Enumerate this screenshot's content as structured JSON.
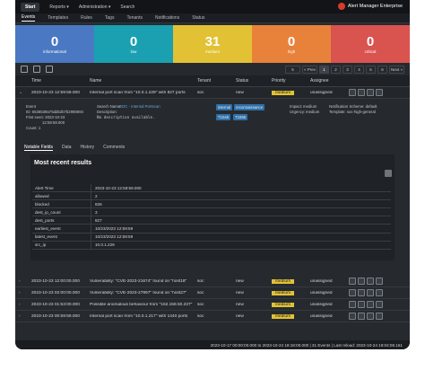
{
  "topbar": {
    "nav": [
      "Start",
      "Reports ▾",
      "Administration ▾",
      "Search"
    ],
    "brand": "Alert Manager Enterprise"
  },
  "subnav": [
    "Events",
    "Templates",
    "Rules",
    "Tags",
    "Tenants",
    "Notifications",
    "Status"
  ],
  "tiles": [
    {
      "count": "0",
      "label": "informational",
      "color": "#4a78c2"
    },
    {
      "count": "0",
      "label": "low",
      "color": "#1aa0b0"
    },
    {
      "count": "31",
      "label": "medium",
      "color": "#e2c234"
    },
    {
      "count": "0",
      "label": "high",
      "color": "#e8823a"
    },
    {
      "count": "0",
      "label": "critical",
      "color": "#d9534f"
    }
  ],
  "pager": {
    "per_page": "5",
    "prev": "« Prev",
    "pages": [
      "1",
      "2",
      "3",
      "4",
      "5",
      "6"
    ],
    "current": "1",
    "next": "Next »"
  },
  "table": {
    "headers": {
      "time": "Time",
      "name": "Name",
      "tenant": "Tenant",
      "status": "Status",
      "priority": "Priority",
      "assignee": "Assignee"
    }
  },
  "expanded_row": {
    "time": "2023-10-23 12:59:59.000",
    "name": "Internal port scan from \"10.0.1.229\" with 827 ports",
    "tenant": "soc",
    "status": "new",
    "priority": "medium",
    "assignee": "unassigned"
  },
  "details": {
    "search_name_label": "Search Name:",
    "search_name_value": "SOC - Internal Portscan",
    "description_label": "Description:",
    "description_value": "No description available.",
    "event_id_label": "Event",
    "event_id": "ID: 6536539a75dd52b7b2980694",
    "first_seen": "First seen: 2023-10-23",
    "first_seen_time": "12:59:59.000",
    "count": "Count: 1",
    "tags": [
      "internal",
      "reconnaissance",
      "T1046",
      "T1595"
    ],
    "impact": "Impact:",
    "impact_value": "medium",
    "urgency": "Urgency:",
    "urgency_value": "medium",
    "notif_scheme": "Notification Scheme: default",
    "template": "Template: soc-high-general"
  },
  "detail_tabs": [
    "Notable Fields",
    "Data",
    "History",
    "Comments"
  ],
  "panel": {
    "title": "Most recent results",
    "fields": [
      {
        "k": "Alert Time",
        "v": "2023-10-23 12:59:59.000"
      },
      {
        "k": "allowed",
        "v": "2"
      },
      {
        "k": "blocked",
        "v": "826"
      },
      {
        "k": "dest_ip_count",
        "v": "3"
      },
      {
        "k": "dest_ports",
        "v": "827"
      },
      {
        "k": "earliest_event",
        "v": "10/23/2023 12:59:59"
      },
      {
        "k": "latest_event",
        "v": "10/23/2023 12:59:59"
      },
      {
        "k": "src_ip",
        "v": "10.0.1.229"
      }
    ]
  },
  "rows": [
    {
      "time": "2023-10-23 12:00:00.000",
      "name": "Vulnerability: \"CVE-2023-21674\" found on \"host18\"",
      "tenant": "soc",
      "status": "new",
      "priority": "medium",
      "assignee": "unassigned"
    },
    {
      "time": "2023-10-23 02:00:00.000",
      "name": "Vulnerability: \"CVE-2023-27997\" found on \"host27\"",
      "tenant": "soc",
      "status": "new",
      "priority": "medium",
      "assignee": "unassigned"
    },
    {
      "time": "2023-10-23 01:53:00.000",
      "name": "Possible anomalous behaviour from \"162.158.50.237\"",
      "tenant": "soc",
      "status": "new",
      "priority": "medium",
      "assignee": "unassigned"
    },
    {
      "time": "2023-10-23 00:59:59.000",
      "name": "Internal port scan from \"10.0.1.217\" with 1440 ports",
      "tenant": "soc",
      "status": "new",
      "priority": "medium",
      "assignee": "unassigned"
    }
  ],
  "footer": "2023-10-17 00:00:00.000 to 2023-10-24 18:18:00.000 | 31 Events | Last reload: 2023-10-24 19:04:08.161"
}
